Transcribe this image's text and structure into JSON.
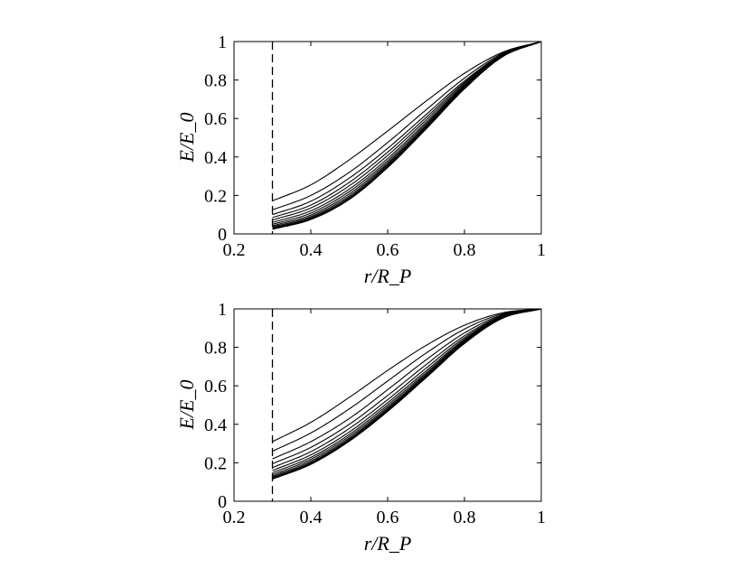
{
  "chart_data": [
    {
      "type": "line",
      "title": "",
      "xlabel": "r/R_P",
      "ylabel": "E/E_0",
      "xlim": [
        0.2,
        1
      ],
      "ylim": [
        0,
        1
      ],
      "xticks": [
        "0.2",
        "0.4",
        "0.6",
        "0.8",
        "1"
      ],
      "yticks": [
        "0",
        "0.2",
        "0.4",
        "0.6",
        "0.8",
        "1"
      ],
      "grid": false,
      "legend": "none",
      "line_color": "#000000",
      "reference_line": {
        "x": 0.3,
        "style": "dashed"
      },
      "x": [
        0.3,
        0.4,
        0.5,
        0.6,
        0.7,
        0.8,
        0.9,
        1.0
      ],
      "series": [
        {
          "values": [
            0.172,
            0.255,
            0.385,
            0.535,
            0.69,
            0.835,
            0.945,
            1.0
          ]
        },
        {
          "values": [
            0.125,
            0.2,
            0.32,
            0.475,
            0.645,
            0.81,
            0.94,
            1.0
          ]
        },
        {
          "values": [
            0.1,
            0.17,
            0.29,
            0.445,
            0.62,
            0.795,
            0.935,
            1.0
          ]
        },
        {
          "values": [
            0.085,
            0.15,
            0.268,
            0.425,
            0.605,
            0.787,
            0.933,
            1.0
          ]
        },
        {
          "values": [
            0.072,
            0.135,
            0.25,
            0.408,
            0.592,
            0.78,
            0.931,
            1.0
          ]
        },
        {
          "values": [
            0.06,
            0.12,
            0.233,
            0.392,
            0.58,
            0.773,
            0.929,
            1.0
          ]
        },
        {
          "values": [
            0.05,
            0.108,
            0.22,
            0.38,
            0.571,
            0.768,
            0.927,
            1.0
          ]
        },
        {
          "values": [
            0.042,
            0.098,
            0.208,
            0.37,
            0.563,
            0.764,
            0.926,
            1.0
          ]
        },
        {
          "values": [
            0.036,
            0.09,
            0.198,
            0.362,
            0.557,
            0.761,
            0.925,
            1.0
          ]
        },
        {
          "values": [
            0.031,
            0.084,
            0.19,
            0.355,
            0.552,
            0.758,
            0.924,
            1.0
          ]
        },
        {
          "values": [
            0.027,
            0.079,
            0.184,
            0.349,
            0.548,
            0.756,
            0.923,
            1.0
          ]
        },
        {
          "values": [
            0.024,
            0.075,
            0.179,
            0.345,
            0.545,
            0.754,
            0.922,
            1.0
          ]
        }
      ]
    },
    {
      "type": "line",
      "title": "",
      "xlabel": "r/R_P",
      "ylabel": "E/E_0",
      "xlim": [
        0.2,
        1
      ],
      "ylim": [
        0,
        1
      ],
      "xticks": [
        "0.2",
        "0.4",
        "0.6",
        "0.8",
        "1"
      ],
      "yticks": [
        "0",
        "0.2",
        "0.4",
        "0.6",
        "0.8",
        "1"
      ],
      "grid": false,
      "legend": "none",
      "line_color": "#000000",
      "reference_line": {
        "x": 0.3,
        "style": "dashed"
      },
      "x": [
        0.3,
        0.4,
        0.5,
        0.6,
        0.7,
        0.8,
        0.9,
        1.0
      ],
      "series": [
        {
          "values": [
            0.31,
            0.41,
            0.54,
            0.68,
            0.81,
            0.915,
            0.98,
            1.0
          ]
        },
        {
          "values": [
            0.26,
            0.355,
            0.48,
            0.625,
            0.77,
            0.895,
            0.975,
            1.0
          ]
        },
        {
          "values": [
            0.22,
            0.31,
            0.43,
            0.58,
            0.735,
            0.875,
            0.97,
            1.0
          ]
        },
        {
          "values": [
            0.195,
            0.28,
            0.4,
            0.55,
            0.71,
            0.86,
            0.966,
            1.0
          ]
        },
        {
          "values": [
            0.175,
            0.258,
            0.378,
            0.528,
            0.692,
            0.85,
            0.963,
            1.0
          ]
        },
        {
          "values": [
            0.16,
            0.241,
            0.36,
            0.512,
            0.678,
            0.842,
            0.96,
            1.0
          ]
        },
        {
          "values": [
            0.148,
            0.228,
            0.347,
            0.5,
            0.668,
            0.836,
            0.958,
            1.0
          ]
        },
        {
          "values": [
            0.138,
            0.218,
            0.337,
            0.49,
            0.66,
            0.831,
            0.956,
            1.0
          ]
        },
        {
          "values": [
            0.13,
            0.209,
            0.328,
            0.482,
            0.654,
            0.827,
            0.955,
            1.0
          ]
        },
        {
          "values": [
            0.124,
            0.202,
            0.321,
            0.476,
            0.649,
            0.824,
            0.954,
            1.0
          ]
        },
        {
          "values": [
            0.119,
            0.197,
            0.316,
            0.471,
            0.645,
            0.822,
            0.953,
            1.0
          ]
        },
        {
          "values": [
            0.115,
            0.192,
            0.312,
            0.467,
            0.642,
            0.82,
            0.952,
            1.0
          ]
        }
      ]
    }
  ]
}
